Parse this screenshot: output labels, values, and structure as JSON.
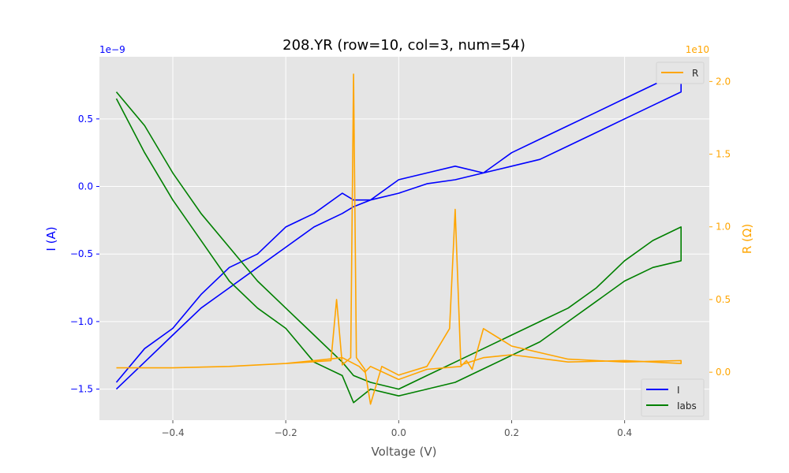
{
  "chart_data": {
    "type": "line",
    "title": "208.YR (row=10, col=3, num=54)",
    "xlabel": "Voltage (V)",
    "ylabel_left": "I (A)",
    "ylabel_right": "R (Ω)",
    "offset_left": "1e−9",
    "offset_right": "1e10",
    "xlim": [
      -0.53,
      0.55
    ],
    "ylim_left": [
      -1.73,
      0.96
    ],
    "ylim_right": [
      -0.33,
      2.17
    ],
    "xticks": [
      -0.4,
      -0.2,
      0.0,
      0.2,
      0.4
    ],
    "xtick_labels": [
      "−0.4",
      "−0.2",
      "0.0",
      "0.2",
      "0.4"
    ],
    "yticks_left": [
      0.5,
      0.0,
      -0.5,
      -1.0,
      -1.5
    ],
    "ytick_labels_left": [
      "0.5",
      "0.0",
      "−0.5",
      "−1.0",
      "−1.5"
    ],
    "yticks_right": [
      2.0,
      1.5,
      1.0,
      0.5,
      0.0
    ],
    "ytick_labels_right": [
      "2.0",
      "1.5",
      "1.0",
      "0.5",
      "0.0"
    ],
    "grid": true,
    "legend_left_placement": "lower right",
    "legend_right_placement": "upper right",
    "colors": {
      "I": "#0000ff",
      "Iabs": "#008000",
      "R": "#ffa500",
      "left_axis": "#0000ff",
      "right_axis": "#ffa500",
      "background": "#e5e5e5"
    },
    "series": [
      {
        "name": "I",
        "axis": "left",
        "x": [
          -0.5,
          -0.45,
          -0.4,
          -0.35,
          -0.3,
          -0.25,
          -0.2,
          -0.15,
          -0.1,
          -0.08,
          -0.05,
          0.0,
          0.05,
          0.1,
          0.15,
          0.2,
          0.25,
          0.3,
          0.35,
          0.4,
          0.45,
          0.5,
          0.5,
          0.45,
          0.4,
          0.35,
          0.3,
          0.25,
          0.2,
          0.15,
          0.1,
          0.05,
          0.0,
          -0.05,
          -0.08,
          -0.1,
          -0.15,
          -0.2,
          -0.25,
          -0.3,
          -0.35,
          -0.4,
          -0.45,
          -0.5
        ],
        "y": [
          -1.45,
          -1.2,
          -1.05,
          -0.8,
          -0.6,
          -0.5,
          -0.3,
          -0.2,
          -0.05,
          -0.1,
          -0.1,
          0.05,
          0.1,
          0.15,
          0.1,
          0.25,
          0.35,
          0.45,
          0.55,
          0.65,
          0.75,
          0.85,
          0.7,
          0.6,
          0.5,
          0.4,
          0.3,
          0.2,
          0.15,
          0.1,
          0.05,
          0.02,
          -0.05,
          -0.1,
          -0.15,
          -0.2,
          -0.3,
          -0.45,
          -0.6,
          -0.75,
          -0.9,
          -1.1,
          -1.3,
          -1.5
        ]
      },
      {
        "name": "Iabs",
        "axis": "left",
        "x": [
          -0.5,
          -0.45,
          -0.4,
          -0.35,
          -0.3,
          -0.25,
          -0.2,
          -0.15,
          -0.1,
          -0.08,
          -0.05,
          0.0,
          0.05,
          0.1,
          0.15,
          0.2,
          0.25,
          0.3,
          0.35,
          0.4,
          0.45,
          0.5,
          0.5,
          0.45,
          0.4,
          0.35,
          0.3,
          0.25,
          0.2,
          0.15,
          0.1,
          0.05,
          0.0,
          -0.05,
          -0.08,
          -0.1,
          -0.15,
          -0.2,
          -0.25,
          -0.3,
          -0.35,
          -0.4,
          -0.45,
          -0.5
        ],
        "y": [
          0.7,
          0.45,
          0.1,
          -0.2,
          -0.45,
          -0.7,
          -0.9,
          -1.1,
          -1.3,
          -1.4,
          -1.45,
          -1.5,
          -1.4,
          -1.3,
          -1.2,
          -1.1,
          -1.0,
          -0.9,
          -0.75,
          -0.55,
          -0.4,
          -0.3,
          -0.55,
          -0.6,
          -0.7,
          -0.85,
          -1.0,
          -1.15,
          -1.25,
          -1.35,
          -1.45,
          -1.5,
          -1.55,
          -1.5,
          -1.6,
          -1.4,
          -1.3,
          -1.05,
          -0.9,
          -0.7,
          -0.4,
          -0.1,
          0.25,
          0.65
        ]
      },
      {
        "name": "R",
        "axis": "right",
        "x": [
          -0.5,
          -0.4,
          -0.3,
          -0.2,
          -0.12,
          -0.11,
          -0.1,
          -0.085,
          -0.08,
          -0.075,
          -0.06,
          -0.05,
          -0.03,
          0.0,
          0.05,
          0.09,
          0.1,
          0.11,
          0.15,
          0.2,
          0.3,
          0.4,
          0.5,
          0.5,
          0.4,
          0.3,
          0.2,
          0.15,
          0.13,
          0.12,
          0.11,
          0.05,
          0.0,
          -0.05,
          -0.06,
          -0.07,
          -0.1,
          -0.15,
          -0.2,
          -0.3,
          -0.4,
          -0.5
        ],
        "y": [
          0.03,
          0.03,
          0.04,
          0.06,
          0.08,
          0.5,
          0.05,
          0.1,
          2.05,
          0.1,
          0.02,
          -0.22,
          0.04,
          -0.02,
          0.04,
          0.3,
          1.12,
          0.05,
          0.1,
          0.12,
          0.07,
          0.08,
          0.06,
          0.08,
          0.07,
          0.09,
          0.18,
          0.3,
          0.02,
          0.08,
          0.04,
          0.02,
          -0.05,
          0.04,
          0.0,
          0.04,
          0.1,
          0.08,
          0.06,
          0.04,
          0.03,
          0.03
        ]
      }
    ]
  }
}
